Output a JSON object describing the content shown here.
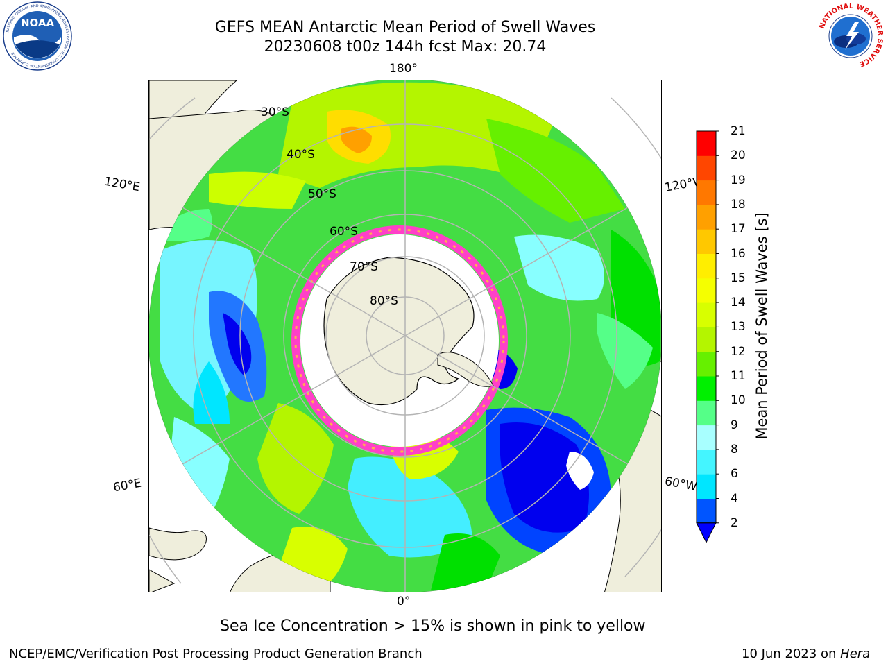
{
  "header": {
    "title_line1": "GEFS MEAN Antarctic Mean Period of Swell Waves",
    "title_line2": "20230608 t00z 144h fcst   Max: 20.74"
  },
  "logos": {
    "left": {
      "text": "NOAA",
      "ring_text": "NATIONAL OCEANIC AND ATMOSPHERIC ADMINISTRATION · U.S. DEPARTMENT OF COMMERCE",
      "icon": "noaa-logo"
    },
    "right": {
      "ring_text": "NATIONAL WEATHER SERVICE",
      "icon": "nws-logo"
    }
  },
  "map": {
    "projection": "south polar stereographic",
    "longitude_labels": {
      "top": "180°",
      "bottom": "0°",
      "upper_left": "120°E",
      "upper_right": "120°W",
      "lower_left": "60°E",
      "lower_right": "60°W"
    },
    "latitude_labels": [
      "30°S",
      "40°S",
      "50°S",
      "60°S",
      "70°S",
      "80°S"
    ],
    "colors": {
      "land": "#efeedc",
      "ice_edge": "#ff40c8",
      "grid": "#b4b4b4"
    }
  },
  "colorbar": {
    "label": "Mean Period of Swell Waves [s]",
    "ticks": [
      "2",
      "4",
      "6",
      "8",
      "9",
      "10",
      "11",
      "12",
      "13",
      "14",
      "15",
      "16",
      "17",
      "18",
      "19",
      "20",
      "21"
    ],
    "colors": [
      "#0055ff",
      "#00e6ff",
      "#44f5ff",
      "#a8ffff",
      "#55ff88",
      "#00f000",
      "#66f000",
      "#b4f500",
      "#d8ff00",
      "#f5ff00",
      "#ffee00",
      "#ffc800",
      "#ffa000",
      "#ff7800",
      "#ff4600",
      "#ff0000"
    ],
    "under_color": "#0000ff"
  },
  "notes": {
    "sea_ice": "Sea Ice Concentration > 15% is shown in pink to yellow"
  },
  "footer": {
    "left": "NCEP/EMC/Verification Post Processing Product Generation Branch",
    "right_date": "10 Jun 2023 on ",
    "right_machine": "Hera"
  }
}
